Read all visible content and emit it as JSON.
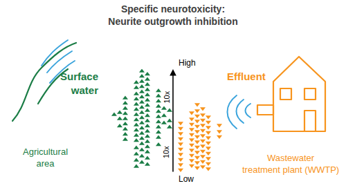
{
  "chart_data": {
    "type": "scatter",
    "title": "Specific neurotoxicity:\nNeurite outgrowth inhibition",
    "ylim": [
      0,
      100
    ],
    "tick_labels": false,
    "annotations": [
      {
        "text": "High",
        "y": 100
      },
      {
        "text": "Low",
        "y": 0
      },
      {
        "text": "10x",
        "y": 73
      },
      {
        "text": "10x",
        "y": 20
      }
    ],
    "series": [
      {
        "name": "Surface water",
        "source": "Agricultural area",
        "color": "#1b7d46",
        "marker": "triangle-up",
        "values": [
          98,
          95,
          93,
          90,
          88,
          87,
          85,
          83,
          82,
          80,
          79,
          78,
          76,
          75,
          74,
          73,
          72,
          71,
          70,
          69,
          68,
          67,
          66,
          65,
          64,
          63,
          62,
          61,
          60,
          59,
          58,
          57,
          56,
          55,
          54,
          53,
          52,
          51,
          50,
          49,
          48,
          47,
          46,
          45,
          44,
          43,
          42,
          41,
          40,
          39,
          38,
          37,
          36,
          35,
          34,
          33,
          32,
          31,
          30,
          28,
          27,
          25,
          24,
          22,
          20,
          18,
          16,
          14,
          12,
          10,
          8,
          6,
          62,
          58,
          55,
          52,
          48,
          45,
          60,
          50,
          44,
          56
        ]
      },
      {
        "name": "Effluent",
        "source": "Wastewater treatment plant (WWTP)",
        "color": "#f7941d",
        "marker": "triangle-down",
        "values": [
          66,
          62,
          60,
          58,
          56,
          55,
          54,
          52,
          51,
          50,
          49,
          48,
          47,
          46,
          45,
          44,
          43,
          42,
          41,
          40,
          39,
          38,
          37,
          36,
          35,
          34,
          33,
          32,
          31,
          30,
          29,
          28,
          27,
          26,
          25,
          24,
          23,
          22,
          21,
          20,
          19,
          18,
          17,
          16,
          15,
          14,
          13,
          12,
          11,
          10,
          9,
          8,
          7,
          6,
          5,
          4,
          3,
          46,
          40,
          35
        ]
      }
    ]
  }
}
